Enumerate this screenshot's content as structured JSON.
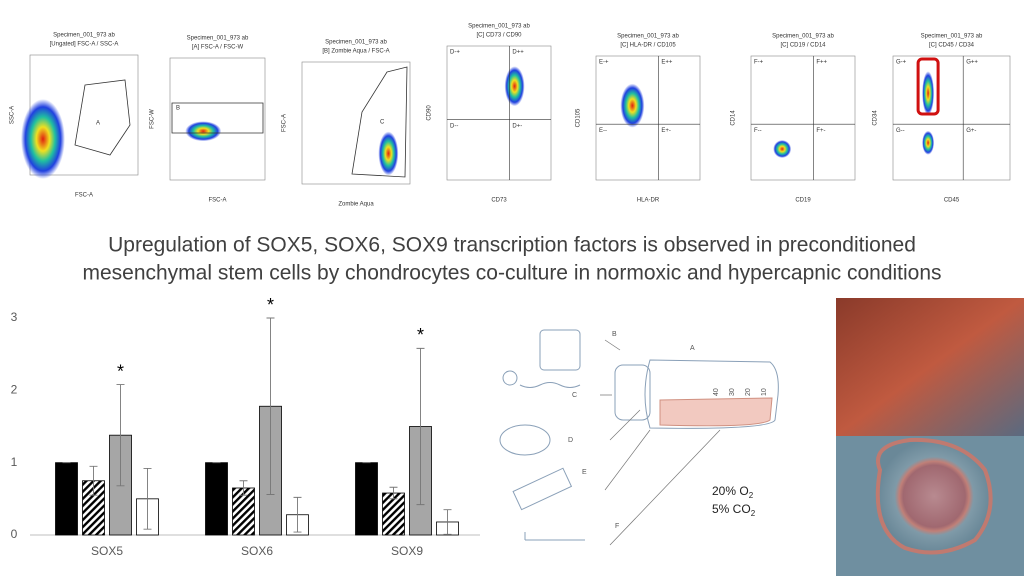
{
  "headline": [
    "Upregulation of SOX5, SOX6, SOX9 transcription factors is observed in preconditioned",
    "mesenchymal stem cells by chondrocytes co-culture in normoxic and hypercapnic conditions"
  ],
  "flow_panels": [
    {
      "title": "Specimen_001_973 ab",
      "subtitle": "[Ungated] FSC-A / SSC-A",
      "xlabel": "FSC-A",
      "ylabel": "SSC-A",
      "gates": [
        "A"
      ]
    },
    {
      "title": "Specimen_001_973 ab",
      "subtitle": "[A] FSC-A / FSC-W",
      "xlabel": "FSC-A",
      "ylabel": "FSC-W",
      "gates": [
        "B"
      ]
    },
    {
      "title": "Specimen_001_973 ab",
      "subtitle": "[B] Zombie Aqua / FSC-A",
      "xlabel": "Zombie Aqua",
      "ylabel": "FSC-A",
      "gates": [
        "C"
      ]
    },
    {
      "title": "Specimen_001_973 ab",
      "subtitle": "[C] CD73 / CD90",
      "xlabel": "CD73",
      "ylabel": "CD90",
      "gates": [
        "D-+",
        "D++",
        "D--",
        "D+-"
      ]
    },
    {
      "title": "Specimen_001_973 ab",
      "subtitle": "[C] HLA-DR / CD105",
      "xlabel": "HLA-DR",
      "ylabel": "CD105",
      "gates": [
        "E-+",
        "E++",
        "E--",
        "E+-"
      ]
    },
    {
      "title": "Specimen_001_973 ab",
      "subtitle": "[C] CD19 / CD14",
      "xlabel": "CD19",
      "ylabel": "CD14",
      "gates": [
        "F-+",
        "F++",
        "F--",
        "F+-"
      ]
    },
    {
      "title": "Specimen_001_973 ab",
      "subtitle": "[C] CD45 / CD34",
      "xlabel": "CD45",
      "ylabel": "CD34",
      "gates": [
        "G-+",
        "G++",
        "G--",
        "G+-"
      ]
    }
  ],
  "chart_data": {
    "type": "bar",
    "categories": [
      "SOX5",
      "SOX6",
      "SOX9"
    ],
    "series": [
      {
        "color": "#000000",
        "values": [
          1,
          1,
          1
        ],
        "errors": [
          0,
          0,
          0
        ]
      },
      {
        "color": "#ffffff",
        "pattern": "hatch",
        "values": [
          0.75,
          0.65,
          0.58
        ],
        "errors": [
          0.2,
          0.1,
          0.08
        ]
      },
      {
        "color": "#a6a6a6",
        "values": [
          1.38,
          1.78,
          1.5
        ],
        "errors": [
          0.7,
          1.22,
          1.08
        ]
      },
      {
        "color": "#ffffff",
        "values": [
          0.5,
          0.28,
          0.18
        ],
        "errors": [
          0.42,
          0.24,
          0.17
        ]
      }
    ],
    "annotations": [
      "*",
      "*",
      "*"
    ],
    "ylim": [
      0,
      3
    ],
    "yticks": [
      0,
      1,
      2,
      3
    ]
  },
  "diagram": {
    "labels": [
      "A",
      "B",
      "C",
      "D",
      "E",
      "F"
    ],
    "flask_marks": [
      "40",
      "30",
      "20",
      "10"
    ],
    "oxygen": {
      "text": "20% O",
      "sub": "2"
    },
    "carbon": {
      "text": "5% CO",
      "sub": "2"
    }
  }
}
